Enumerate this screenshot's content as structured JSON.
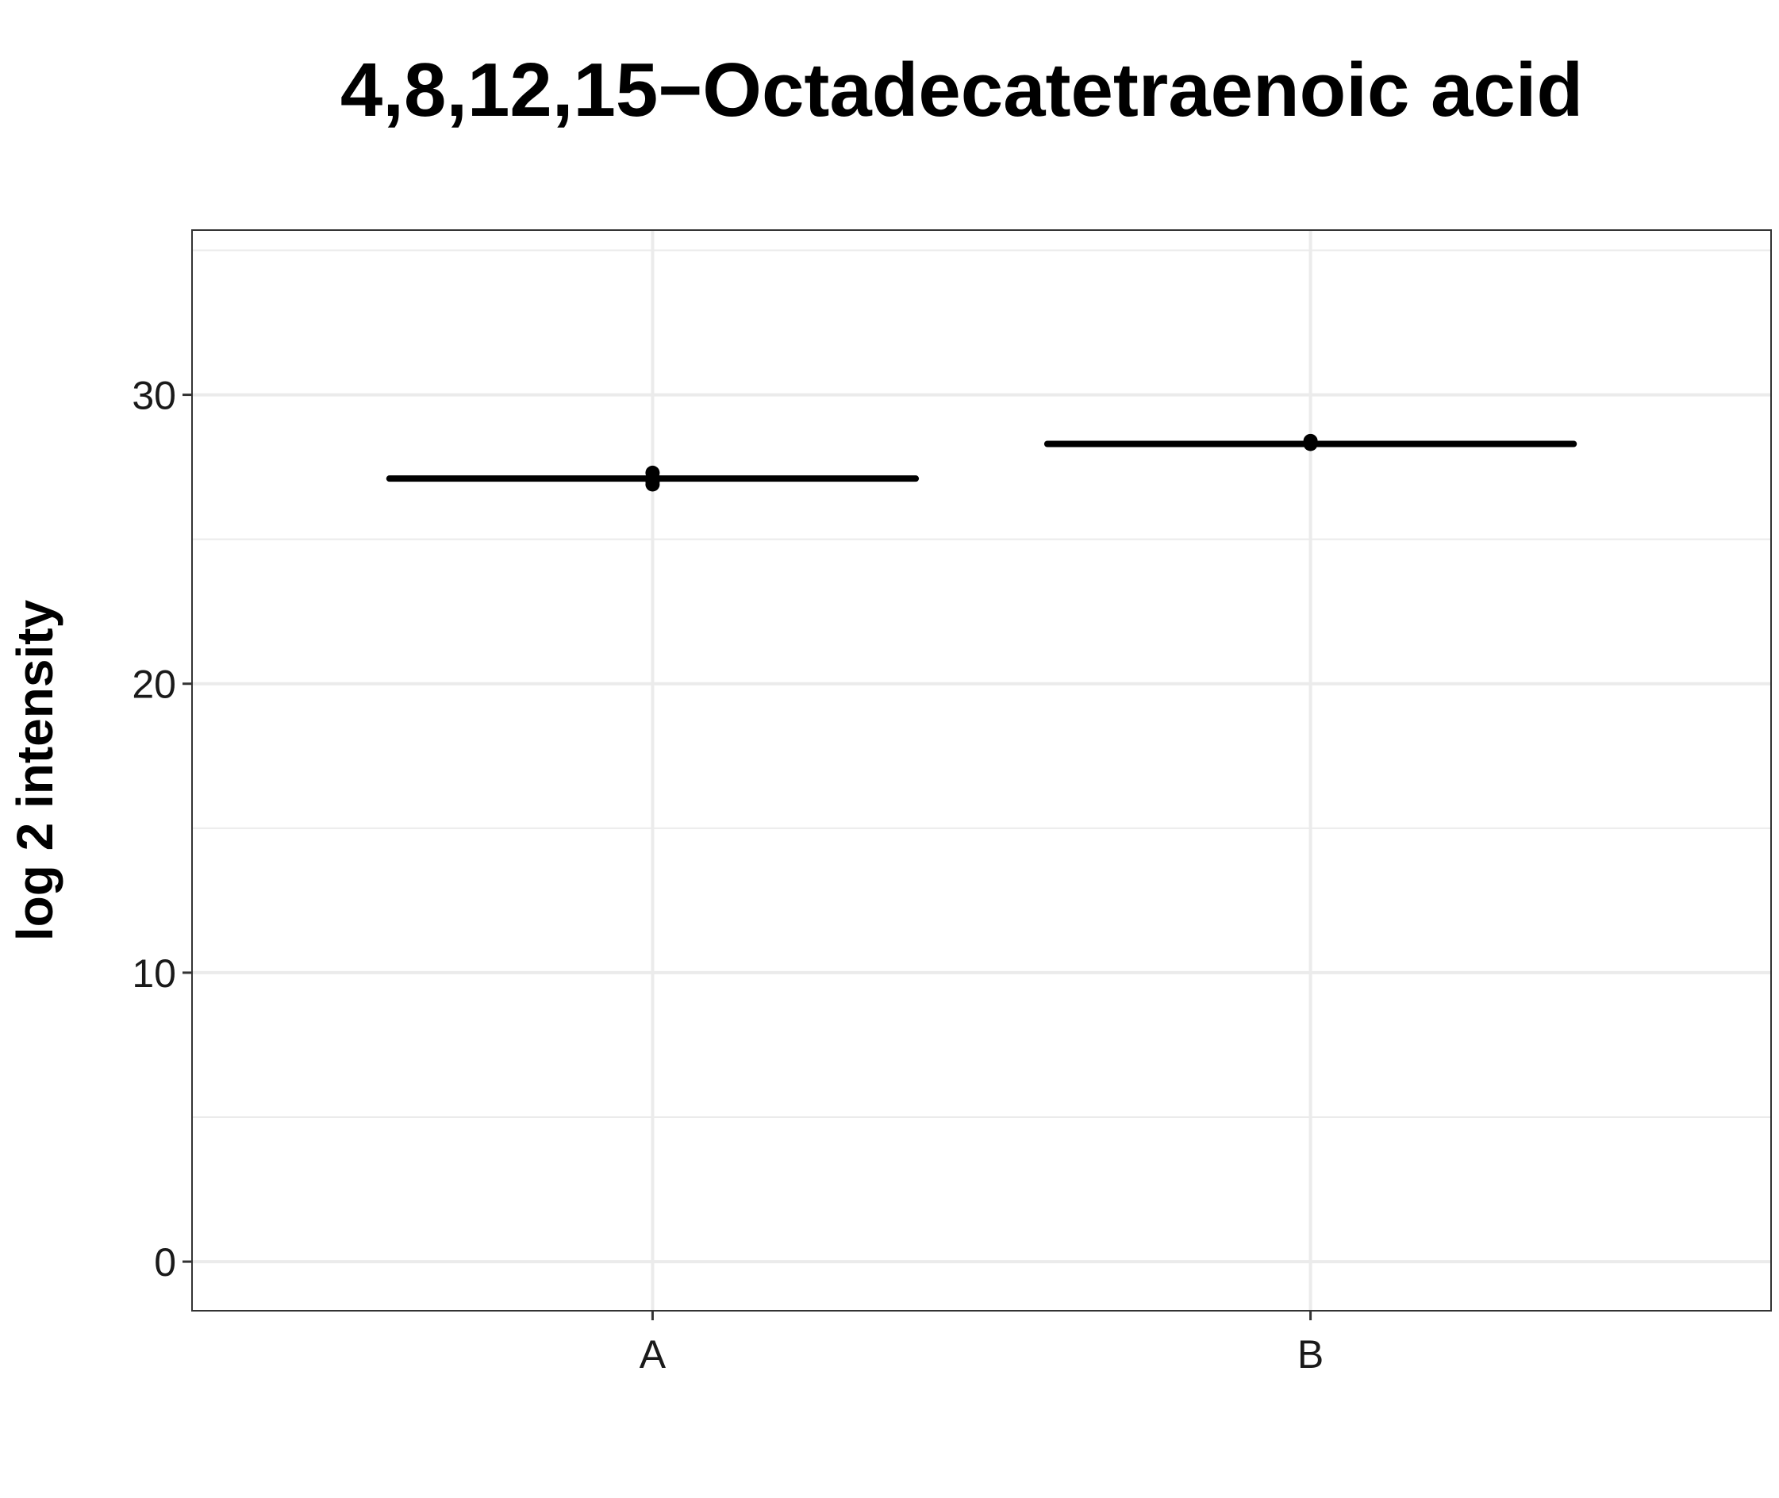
{
  "chart_data": {
    "type": "scatter",
    "title": "4,8,12,15−Octadecatetraenoic acid",
    "xlabel": "",
    "ylabel": "log 2 intensity",
    "categories": [
      "A",
      "B"
    ],
    "y_ticks": [
      0,
      10,
      20,
      30
    ],
    "ylim": [
      -1.7,
      35.7
    ],
    "grid": true,
    "legend": "none",
    "series": [
      {
        "points": [
          {
            "category": "A",
            "y": 27.3
          },
          {
            "category": "A",
            "y": 27.0
          },
          {
            "category": "A",
            "y": 26.9
          },
          {
            "category": "B",
            "y": 28.4
          },
          {
            "category": "B",
            "y": 28.3
          }
        ]
      }
    ],
    "mean_lines": [
      {
        "category": "A",
        "y": 27.1
      },
      {
        "category": "B",
        "y": 28.3
      }
    ],
    "colors": {
      "points": "#000000",
      "mean_line": "#000000",
      "grid_major": "#ebebeb",
      "grid_minor": "#ebebeb",
      "panel_border": "#333333",
      "background": "#ffffff"
    }
  }
}
